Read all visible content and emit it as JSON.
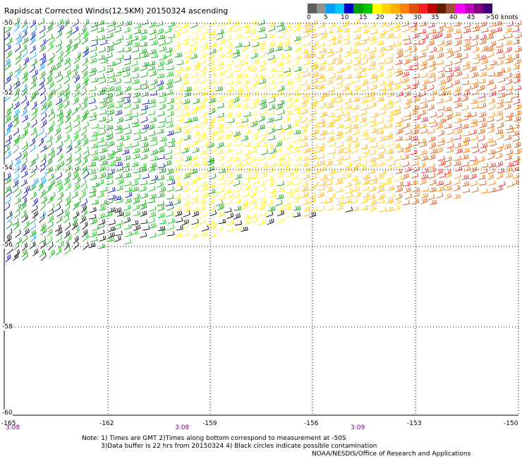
{
  "title": "Rapidscat Corrected Winds(12.5KM) 20150324 ascending",
  "legend": {
    "labels": [
      "0",
      "5",
      "10",
      "15",
      "20",
      "25",
      "30",
      "35",
      "40",
      "45",
      ">50 knots"
    ],
    "colors": [
      "#606060",
      "#909090",
      "#00a0ff",
      "#00c8ff",
      "#0000c0",
      "#00a000",
      "#00c800",
      "#ffff00",
      "#ffd000",
      "#ffb000",
      "#ff8000",
      "#e05000",
      "#ff2020",
      "#c00000",
      "#602000",
      "#a05030",
      "#ff00ff",
      "#c000c0",
      "#800080",
      "#400080"
    ]
  },
  "axes": {
    "lat_labels": [
      "-50",
      "-52",
      "-54",
      "-56",
      "-58",
      "-60"
    ],
    "lon_labels": [
      "-165",
      "-162",
      "-159",
      "-156",
      "-153",
      "-150"
    ],
    "time_labels": [
      "3:08",
      "3:08",
      "3:09"
    ]
  },
  "notes": {
    "line1": "Note: 1) Times are GMT 2)Times along bottom correspond to measurement at -50S",
    "line2": "3)Data buffer is 22 hrs from 20150324 4) Black circles indicate possible contamination",
    "credit": "NOAA/NESDIS/Office of Research and Applications"
  }
}
